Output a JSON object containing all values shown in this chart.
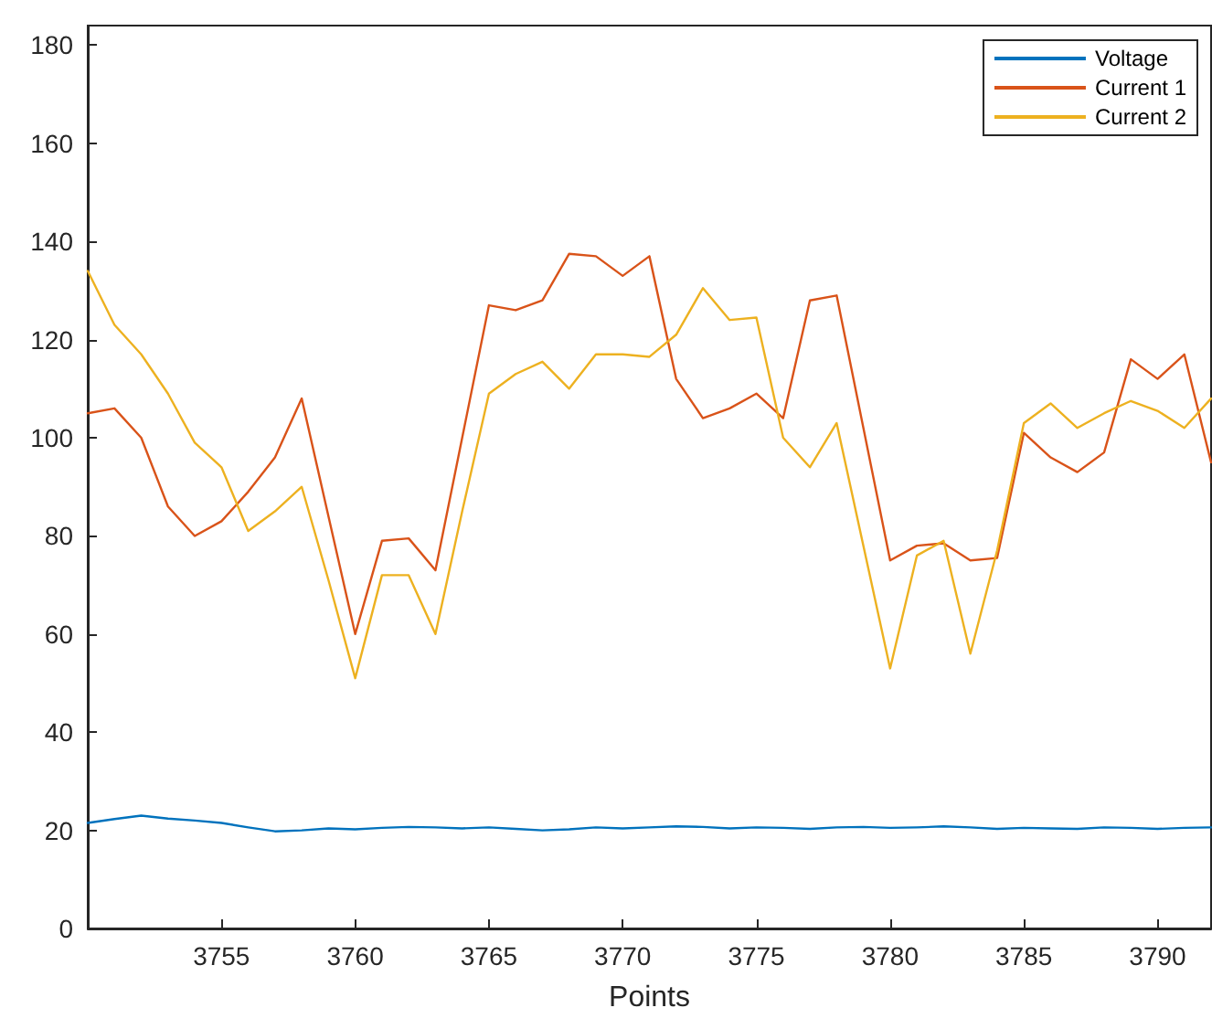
{
  "chart_data": {
    "type": "line",
    "xlabel": "Points",
    "x": [
      3750,
      3751,
      3752,
      3753,
      3754,
      3755,
      3756,
      3757,
      3758,
      3759,
      3760,
      3761,
      3762,
      3763,
      3764,
      3765,
      3766,
      3767,
      3768,
      3769,
      3770,
      3771,
      3772,
      3773,
      3774,
      3775,
      3776,
      3777,
      3778,
      3779,
      3780,
      3781,
      3782,
      3783,
      3784,
      3785,
      3786,
      3787,
      3788,
      3789,
      3790,
      3791,
      3792
    ],
    "series": [
      {
        "name": "Voltage",
        "color": "#0072bd",
        "values": [
          21.5,
          22.3,
          23,
          22.4,
          22,
          21.5,
          20.6,
          19.8,
          20,
          20.4,
          20.2,
          20.5,
          20.7,
          20.6,
          20.4,
          20.6,
          20.3,
          20,
          20.2,
          20.6,
          20.4,
          20.6,
          20.8,
          20.7,
          20.4,
          20.6,
          20.5,
          20.3,
          20.6,
          20.7,
          20.5,
          20.6,
          20.8,
          20.6,
          20.3,
          20.5,
          20.4,
          20.3,
          20.6,
          20.5,
          20.3,
          20.5,
          20.6
        ]
      },
      {
        "name": "Current 1",
        "color": "#d95319",
        "values": [
          105,
          106,
          100,
          86,
          80,
          83,
          89,
          96,
          108,
          84,
          60,
          79,
          79.5,
          73,
          100,
          127,
          126,
          128,
          137.5,
          137,
          133,
          137,
          112,
          104,
          106,
          109,
          104,
          128,
          129,
          102,
          75,
          78,
          78.5,
          75,
          75.5,
          101,
          96,
          93,
          97,
          116,
          112,
          117,
          95
        ]
      },
      {
        "name": "Current 2",
        "color": "#edb120",
        "values": [
          134,
          123,
          117,
          109,
          99,
          94,
          81,
          85,
          90,
          71,
          51,
          72,
          72,
          60,
          85,
          109,
          113,
          115.5,
          110,
          117,
          117,
          116.5,
          121,
          130.5,
          124,
          124.5,
          100,
          94,
          103,
          78,
          53,
          76,
          79,
          56,
          77,
          103,
          107,
          102,
          105,
          107.5,
          105.5,
          102,
          108
        ]
      }
    ],
    "xlim": [
      3750,
      3792
    ],
    "xticks": [
      3755,
      3760,
      3765,
      3770,
      3775,
      3780,
      3785,
      3790
    ],
    "ylim": [
      0,
      184
    ],
    "yticks": [
      0,
      20,
      40,
      60,
      80,
      100,
      120,
      140,
      160,
      180
    ],
    "grid": false,
    "legend": "top right",
    "marker": "none",
    "line_style": "solid"
  }
}
